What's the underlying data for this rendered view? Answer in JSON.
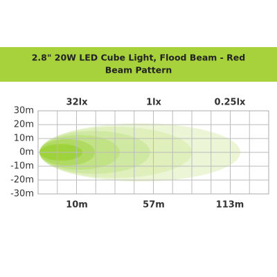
{
  "chart_data": {
    "type": "beam",
    "title": [
      "2.8\" 20W LED Cube Light, Flood Beam - Red",
      "Beam Pattern"
    ],
    "lux_labels": [
      "32lx",
      "1lx",
      "0.25lx"
    ],
    "distance_labels": [
      "10m",
      "57m",
      "113m"
    ],
    "ylim": [
      -30,
      30
    ],
    "yticks": [
      {
        "value": 30,
        "label": "30m"
      },
      {
        "value": 20,
        "label": "20m"
      },
      {
        "value": 10,
        "label": "10m"
      },
      {
        "value": 0,
        "label": "0m"
      },
      {
        "value": -10,
        "label": "-10m"
      },
      {
        "value": -20,
        "label": "-20m"
      },
      {
        "value": -30,
        "label": "-30m"
      }
    ],
    "grid": true
  }
}
